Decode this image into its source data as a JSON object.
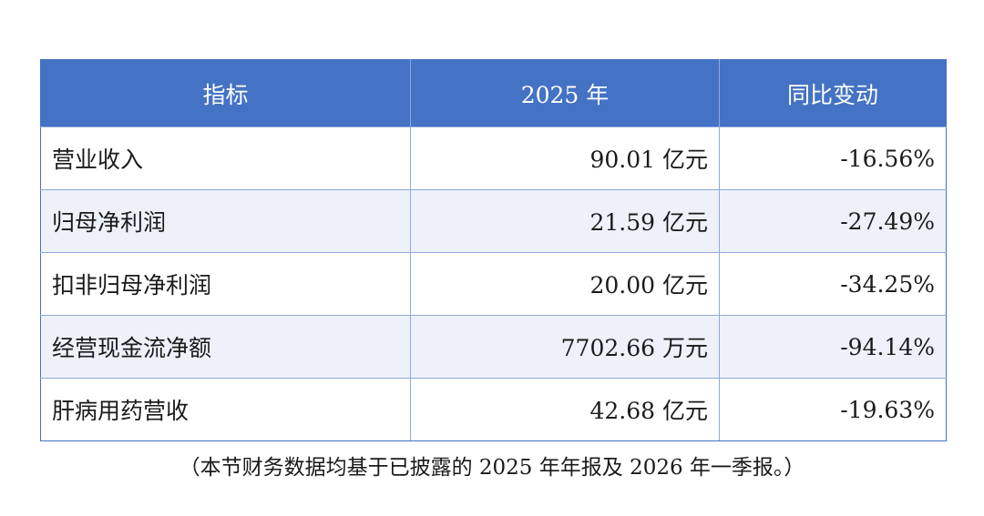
{
  "table": {
    "headers": [
      "指标",
      "2025 年",
      "同比变动"
    ],
    "rows": [
      {
        "metric": "营业收入",
        "value": "90.01 亿元",
        "change": "-16.56%"
      },
      {
        "metric": "归母净利润",
        "value": "21.59 亿元",
        "change": "-27.49%"
      },
      {
        "metric": "扣非归母净利润",
        "value": "20.00 亿元",
        "change": "-34.25%"
      },
      {
        "metric": "经营现金流净额",
        "value": "7702.66 万元",
        "change": "-94.14%"
      },
      {
        "metric": "肝病用药营收",
        "value": "42.68 亿元",
        "change": "-19.63%"
      }
    ]
  },
  "note": "（本节财务数据均基于已披露的 2025 年年报及 2026 年一季报。）",
  "colors": {
    "header_bg": "#4472c4",
    "header_text": "#ffffff",
    "stripe_bg": "#edf1fa",
    "border": "#8eaadb"
  }
}
